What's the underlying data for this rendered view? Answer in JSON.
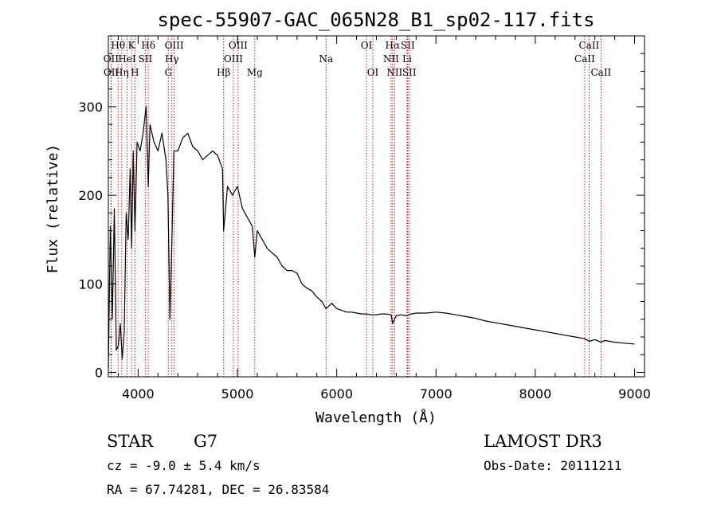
{
  "chart_data": {
    "type": "line",
    "title": "spec-55907-GAC_065N28_B1_sp02-117.fits",
    "xlabel": "Wavelength (Å)",
    "ylabel": "Flux (relative)",
    "xlim": [
      3700,
      9100
    ],
    "ylim": [
      -5,
      380
    ],
    "x_ticks": [
      4000,
      5000,
      6000,
      7000,
      8000,
      9000
    ],
    "x_tick_labels": [
      "4000",
      "5000",
      "6000",
      "7000",
      "8000",
      "9000"
    ],
    "y_ticks": [
      0,
      100,
      200,
      300
    ],
    "y_tick_labels": [
      "0",
      "100",
      "200",
      "300"
    ],
    "series": [
      {
        "name": "flux",
        "x": [
          3700,
          3720,
          3740,
          3760,
          3780,
          3800,
          3820,
          3840,
          3860,
          3880,
          3900,
          3920,
          3934,
          3950,
          3968,
          3990,
          4020,
          4050,
          4080,
          4102,
          4120,
          4160,
          4200,
          4240,
          4280,
          4300,
          4320,
          4340,
          4360,
          4400,
          4450,
          4500,
          4550,
          4600,
          4650,
          4700,
          4750,
          4800,
          4850,
          4861,
          4900,
          4950,
          5000,
          5050,
          5100,
          5150,
          5175,
          5200,
          5250,
          5300,
          5350,
          5400,
          5450,
          5500,
          5550,
          5600,
          5650,
          5700,
          5750,
          5800,
          5850,
          5893,
          5950,
          6000,
          6050,
          6100,
          6150,
          6200,
          6250,
          6300,
          6350,
          6400,
          6450,
          6500,
          6550,
          6563,
          6600,
          6650,
          6700,
          6750,
          6800,
          6900,
          7000,
          7100,
          7200,
          7300,
          7400,
          7500,
          7600,
          7700,
          7800,
          7900,
          8000,
          8100,
          8200,
          8300,
          8400,
          8500,
          8542,
          8600,
          8662,
          8700,
          8800,
          8900,
          9000
        ],
        "y": [
          5,
          165,
          60,
          185,
          25,
          30,
          55,
          15,
          45,
          180,
          150,
          230,
          140,
          250,
          160,
          260,
          250,
          270,
          300,
          210,
          280,
          260,
          250,
          270,
          240,
          200,
          60,
          150,
          250,
          250,
          265,
          270,
          255,
          250,
          240,
          245,
          250,
          245,
          230,
          160,
          210,
          200,
          210,
          185,
          175,
          165,
          130,
          160,
          150,
          140,
          135,
          130,
          120,
          115,
          115,
          112,
          100,
          95,
          92,
          85,
          80,
          72,
          78,
          72,
          70,
          68,
          68,
          67,
          66,
          66,
          65,
          65,
          66,
          66,
          65,
          55,
          64,
          65,
          64,
          66,
          67,
          67,
          68,
          67,
          65,
          63,
          61,
          58,
          56,
          54,
          52,
          50,
          48,
          46,
          44,
          42,
          40,
          38,
          35,
          37,
          34,
          36,
          34,
          33,
          32
        ]
      }
    ],
    "spectral_lines": [
      {
        "label": "Hθ",
        "x": 3798,
        "row": 0
      },
      {
        "label": "OII",
        "x": 3727,
        "row": 1
      },
      {
        "label": "OII",
        "x": 3729,
        "row": 2
      },
      {
        "label": "Hη",
        "x": 3835,
        "row": 2
      },
      {
        "label": "HeI",
        "x": 3889,
        "row": 1
      },
      {
        "label": "K",
        "x": 3934,
        "row": 0
      },
      {
        "label": "H",
        "x": 3968,
        "row": 2
      },
      {
        "label": "Hδ",
        "x": 4102,
        "row": 0
      },
      {
        "label": "SII",
        "x": 4072,
        "row": 1
      },
      {
        "label": "OIII",
        "x": 4363,
        "row": 0
      },
      {
        "label": "Hγ",
        "x": 4340,
        "row": 1
      },
      {
        "label": "G",
        "x": 4304,
        "row": 2
      },
      {
        "label": "Hβ",
        "x": 4861,
        "row": 2
      },
      {
        "label": "OIII",
        "x": 5007,
        "row": 0
      },
      {
        "label": "OIII",
        "x": 4959,
        "row": 1
      },
      {
        "label": "Mg",
        "x": 5175,
        "row": 2
      },
      {
        "label": "Na",
        "x": 5893,
        "row": 1
      },
      {
        "label": "OI",
        "x": 6300,
        "row": 0
      },
      {
        "label": "OI",
        "x": 6364,
        "row": 2
      },
      {
        "label": "Hα",
        "x": 6563,
        "row": 0
      },
      {
        "label": "NII",
        "x": 6548,
        "row": 1
      },
      {
        "label": "NII",
        "x": 6583,
        "row": 2
      },
      {
        "label": "SII",
        "x": 6716,
        "row": 0
      },
      {
        "label": "Li",
        "x": 6708,
        "row": 1
      },
      {
        "label": "SII",
        "x": 6731,
        "row": 2
      },
      {
        "label": "CaII",
        "x": 8542,
        "row": 0
      },
      {
        "label": "CaII",
        "x": 8498,
        "row": 1
      },
      {
        "label": "CaII",
        "x": 8662,
        "row": 2
      }
    ]
  },
  "info": {
    "object_class": "STAR",
    "subclass": "G7",
    "survey": "LAMOST DR3",
    "redshift": "cz = -9.0 ± 5.4 km/s",
    "obs_date": "Obs-Date: 20111211",
    "coords": "RA =  67.74281, DEC =  26.83584"
  }
}
